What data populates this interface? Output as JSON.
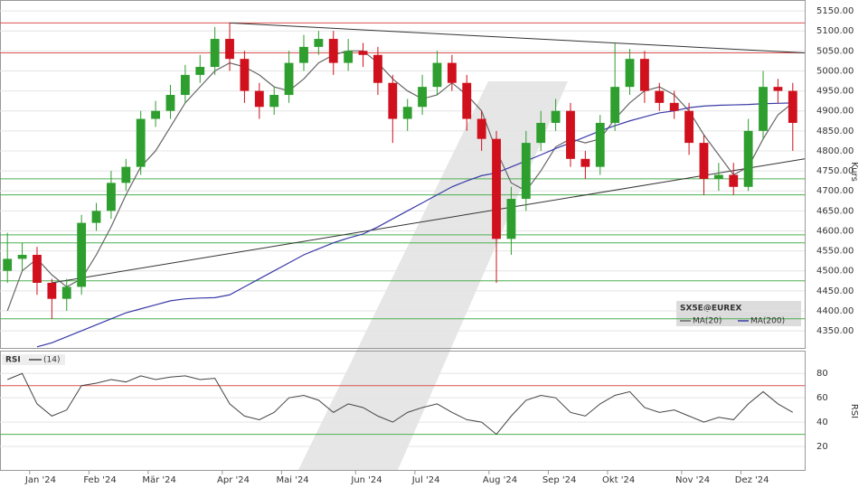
{
  "chart_data": [
    {
      "type": "candlestick",
      "categories": [
        null,
        null,
        "Jan '24",
        null,
        null,
        null,
        "Feb '24",
        null,
        null,
        null,
        "Mär '24",
        null,
        null,
        null,
        null,
        "Apr '24",
        null,
        null,
        null,
        "Mai '24",
        null,
        null,
        null,
        null,
        "Jun '24",
        null,
        null,
        null,
        "Jul '24",
        null,
        null,
        null,
        null,
        "Aug '24",
        null,
        null,
        null,
        "Sep '24",
        null,
        null,
        null,
        "Okt '24",
        null,
        null,
        null,
        null,
        "Nov '24",
        null,
        null,
        null,
        "Dez '24",
        null,
        null,
        null
      ],
      "open": [
        4500,
        4530,
        4540,
        4470,
        4430,
        4460,
        4620,
        4650,
        4720,
        4760,
        4880,
        4900,
        4940,
        4990,
        5010,
        5080,
        5030,
        4950,
        4910,
        4940,
        5020,
        5060,
        5080,
        5020,
        5050,
        5040,
        4970,
        4880,
        4910,
        4960,
        5020,
        4970,
        4880,
        4830,
        4580,
        4680,
        4820,
        4870,
        4900,
        4780,
        4760,
        4870,
        4960,
        5030,
        4950,
        4920,
        4900,
        4820,
        4730,
        4740,
        4710,
        4850,
        4960,
        4950
      ],
      "high": [
        4595,
        4570,
        4560,
        4480,
        4480,
        4640,
        4670,
        4750,
        4780,
        4900,
        4925,
        4965,
        5015,
        5040,
        5110,
        5120,
        5050,
        4970,
        4960,
        5050,
        5090,
        5100,
        5100,
        5080,
        5070,
        5060,
        4990,
        4930,
        4990,
        5050,
        5040,
        4990,
        4900,
        4850,
        4710,
        4850,
        4900,
        4930,
        4920,
        4800,
        4890,
        5070,
        5055,
        5050,
        4970,
        4950,
        4920,
        4840,
        4770,
        4770,
        4880,
        5000,
        4980,
        4970
      ],
      "low": [
        4470,
        4500,
        4440,
        4380,
        4400,
        4440,
        4600,
        4630,
        4700,
        4740,
        4860,
        4880,
        4920,
        4970,
        4990,
        5000,
        4920,
        4880,
        4890,
        4920,
        5000,
        5040,
        4990,
        5000,
        5010,
        4940,
        4820,
        4850,
        4890,
        4940,
        4950,
        4850,
        4800,
        4470,
        4540,
        4650,
        4800,
        4850,
        4760,
        4730,
        4740,
        4850,
        4940,
        4920,
        4900,
        4880,
        4790,
        4690,
        4700,
        4690,
        4700,
        4830,
        4920,
        4800
      ],
      "close": [
        4530,
        4540,
        4470,
        4430,
        4460,
        4620,
        4650,
        4720,
        4760,
        4880,
        4900,
        4940,
        4990,
        5010,
        5080,
        5030,
        4950,
        4910,
        4940,
        5020,
        5060,
        5080,
        5020,
        5050,
        5040,
        4970,
        4880,
        4910,
        4960,
        5020,
        4970,
        4880,
        4830,
        4580,
        4680,
        4820,
        4870,
        4900,
        4780,
        4760,
        4870,
        4960,
        5030,
        4950,
        4920,
        4900,
        4820,
        4730,
        4740,
        4710,
        4850,
        4960,
        4950,
        4870
      ],
      "up_color": "#2e9e2e",
      "down_color": "#d0101c",
      "legend_title": "SX5E@EUREX",
      "series": [
        {
          "name": "MA(20)",
          "color": "#666666",
          "values": [
            4400,
            4500,
            4530,
            4490,
            4460,
            4480,
            4540,
            4610,
            4690,
            4760,
            4800,
            4860,
            4920,
            4960,
            5000,
            5020,
            5010,
            4990,
            4960,
            4950,
            4980,
            5020,
            5040,
            5050,
            5050,
            5020,
            4980,
            4950,
            4930,
            4940,
            4970,
            4940,
            4900,
            4800,
            4720,
            4700,
            4750,
            4810,
            4830,
            4820,
            4830,
            4880,
            4920,
            4950,
            4960,
            4940,
            4900,
            4840,
            4790,
            4740,
            4760,
            4830,
            4890,
            4920
          ]
        },
        {
          "name": "MA(200)",
          "color": "#3a3aa8",
          "values": [
            null,
            null,
            4310,
            4320,
            4335,
            4350,
            4365,
            4380,
            4395,
            4405,
            4415,
            4425,
            4430,
            4432,
            4433,
            4440,
            4460,
            4480,
            4500,
            4520,
            4540,
            4555,
            4570,
            4582,
            4592,
            4610,
            4630,
            4650,
            4670,
            4690,
            4710,
            4725,
            4738,
            4745,
            4760,
            4775,
            4790,
            4806,
            4820,
            4835,
            4850,
            4863,
            4875,
            4885,
            4895,
            4900,
            4908,
            4912,
            4914,
            4915,
            4916,
            4918,
            4919,
            4920
          ]
        }
      ],
      "levels": [
        {
          "value": 5120,
          "color": "#d9534f"
        },
        {
          "value": 5045,
          "color": "#d9534f"
        },
        {
          "value": 4730,
          "color": "#4caf50"
        },
        {
          "value": 4690,
          "color": "#4caf50"
        },
        {
          "value": 4590,
          "color": "#4caf50"
        },
        {
          "value": 4570,
          "color": "#4caf50"
        },
        {
          "value": 4475,
          "color": "#4caf50"
        },
        {
          "value": 4380,
          "color": "#4caf50"
        }
      ],
      "trendlines": [
        {
          "values": [
            5120,
            5045
          ],
          "color": "#333333"
        },
        {
          "values": [
            4470,
            4780
          ],
          "color": "#333333"
        }
      ],
      "y_label": "Kurs",
      "ylim": [
        4305,
        5175
      ],
      "yticks": [
        {
          "value": 4350,
          "label": "4350.00"
        },
        {
          "value": 4400,
          "label": "4400.00"
        },
        {
          "value": 4450,
          "label": "4450.00"
        },
        {
          "value": 4500,
          "label": "4500.00"
        },
        {
          "value": 4550,
          "label": "4550.00"
        },
        {
          "value": 4600,
          "label": "4600.00"
        },
        {
          "value": 4650,
          "label": "4650.00"
        },
        {
          "value": 4700,
          "label": "4700.00"
        },
        {
          "value": 4750,
          "label": "4750.00"
        },
        {
          "value": 4800,
          "label": "4800.00"
        },
        {
          "value": 4850,
          "label": "4850.00"
        },
        {
          "value": 4900,
          "label": "4900.00"
        },
        {
          "value": 4950,
          "label": "4950.00"
        },
        {
          "value": 5000,
          "label": "5000.00"
        },
        {
          "value": 5050,
          "label": "5050.00"
        },
        {
          "value": 5100,
          "label": "5100.00"
        },
        {
          "value": 5150,
          "label": "5150.00"
        }
      ],
      "grid": true
    },
    {
      "type": "line",
      "title": "RSI",
      "y_label": "RSI",
      "series": [
        {
          "name": "(14)",
          "color": "#444444",
          "values": [
            75,
            80,
            55,
            45,
            50,
            70,
            72,
            75,
            73,
            78,
            75,
            77,
            78,
            75,
            76,
            55,
            45,
            42,
            48,
            60,
            62,
            58,
            48,
            55,
            52,
            45,
            40,
            48,
            52,
            55,
            48,
            42,
            40,
            30,
            45,
            58,
            62,
            60,
            48,
            45,
            55,
            62,
            65,
            52,
            48,
            50,
            45,
            40,
            44,
            42,
            55,
            65,
            55,
            48
          ]
        }
      ],
      "levels": [
        {
          "value": 70,
          "color": "#d9534f"
        },
        {
          "value": 30,
          "color": "#4caf50"
        }
      ],
      "ylim": [
        0,
        98
      ],
      "yticks": [
        20,
        40,
        60,
        80
      ],
      "grid": true
    }
  ]
}
